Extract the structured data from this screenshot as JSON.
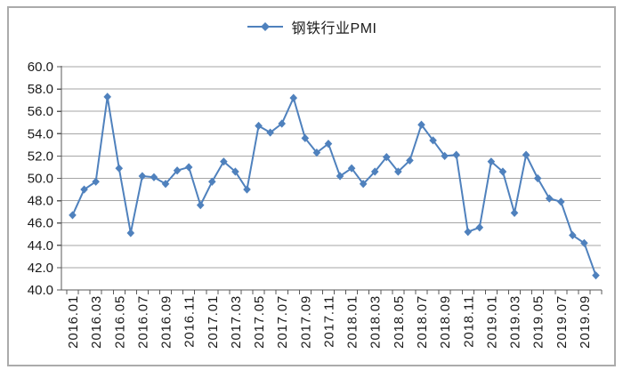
{
  "background": "#FFFFFF",
  "frame": {
    "border_color": "#ABABAB"
  },
  "chart_data": {
    "type": "line",
    "title": "",
    "legend": {
      "label": "钢铁行业PMI",
      "position": "top-center"
    },
    "grid": true,
    "ylim": [
      40,
      60
    ],
    "y_tick_step": 2,
    "y_tick_labels": [
      "40.0",
      "42.0",
      "44.0",
      "46.0",
      "48.0",
      "50.0",
      "52.0",
      "54.0",
      "56.0",
      "58.0",
      "60.0"
    ],
    "x_label_interval": 2,
    "visible_x_tick_labels": [
      "2016.01",
      "2016.03",
      "2016.05",
      "2016.07",
      "2016.09",
      "2016.11",
      "2017.01",
      "2017.03",
      "2017.05",
      "2017.07",
      "2017.09",
      "2017.11",
      "2018.01",
      "2018.03",
      "2018.05",
      "2018.07",
      "2018.09",
      "2018.11",
      "2019.01",
      "2019.03",
      "2019.05",
      "2019.07",
      "2019.09"
    ],
    "x": [
      "2016.01",
      "2016.02",
      "2016.03",
      "2016.04",
      "2016.05",
      "2016.06",
      "2016.07",
      "2016.08",
      "2016.09",
      "2016.10",
      "2016.11",
      "2016.12",
      "2017.01",
      "2017.02",
      "2017.03",
      "2017.04",
      "2017.05",
      "2017.06",
      "2017.07",
      "2017.08",
      "2017.09",
      "2017.10",
      "2017.11",
      "2017.12",
      "2018.01",
      "2018.02",
      "2018.03",
      "2018.04",
      "2018.05",
      "2018.06",
      "2018.07",
      "2018.08",
      "2018.09",
      "2018.10",
      "2018.11",
      "2018.12",
      "2019.01",
      "2019.02",
      "2019.03",
      "2019.04",
      "2019.05",
      "2019.06",
      "2019.07",
      "2019.08",
      "2019.09",
      "2019.10"
    ],
    "series": [
      {
        "name": "钢铁行业PMI",
        "color": "#4F81BD",
        "marker": "diamond",
        "values": [
          46.7,
          49.0,
          49.7,
          57.3,
          50.9,
          45.1,
          50.2,
          50.1,
          49.5,
          50.7,
          51.0,
          47.6,
          49.7,
          51.5,
          50.6,
          49.0,
          54.7,
          54.1,
          54.9,
          57.2,
          53.6,
          52.3,
          53.1,
          50.2,
          50.9,
          49.5,
          50.6,
          51.9,
          50.6,
          51.6,
          54.8,
          53.4,
          52.0,
          52.1,
          45.2,
          45.6,
          51.5,
          50.6,
          46.9,
          52.1,
          50.0,
          48.2,
          47.9,
          44.9,
          44.2,
          41.3
        ]
      }
    ],
    "gridline_color": "#A6A6A6",
    "axis_color": "#595959",
    "label_color": "#1A1A1A"
  }
}
